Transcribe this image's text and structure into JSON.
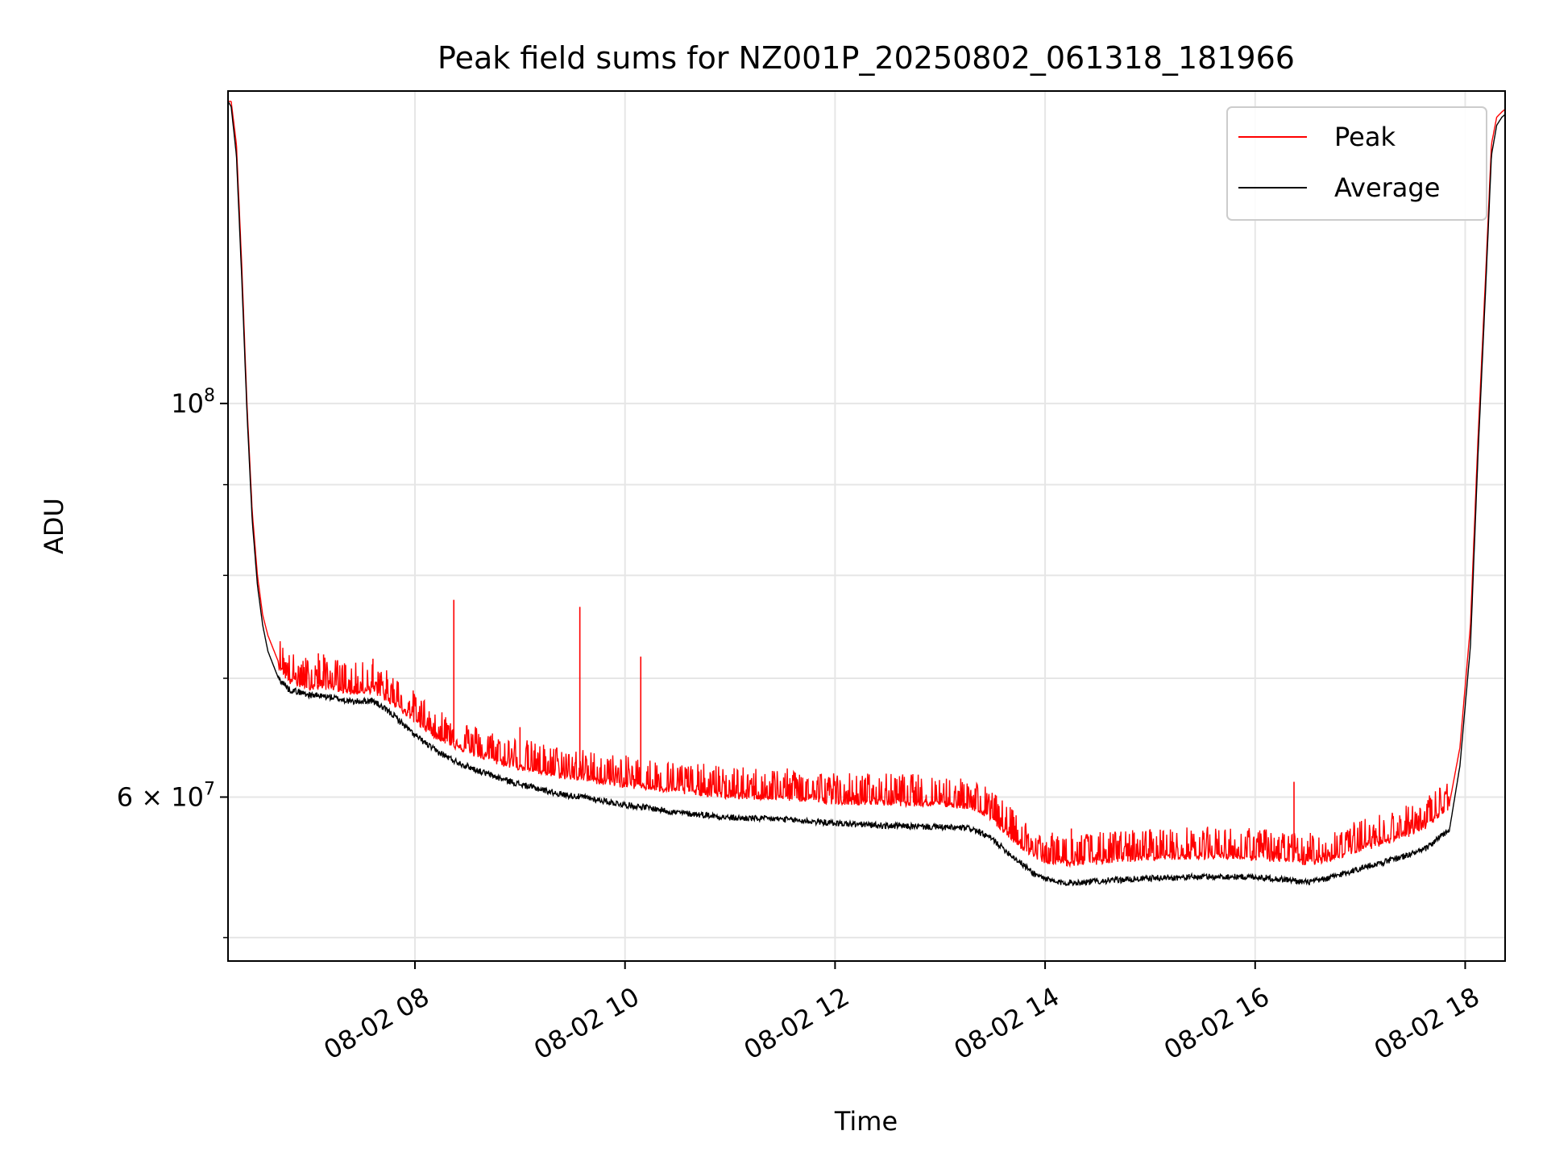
{
  "chart_data": {
    "type": "line",
    "title": "Peak field sums for NZ001P_20250802_061318_181966",
    "xlabel": "Time",
    "ylabel": "ADU",
    "x_unit": "time of day (hours) on 08-02",
    "yscale": "log",
    "xlim": [
      6.22,
      18.38
    ],
    "ylim": [
      48500000,
      150000000
    ],
    "grid": true,
    "legend_position": "top-right",
    "xticks": [
      {
        "value": 8,
        "label": "08-02 08"
      },
      {
        "value": 10,
        "label": "08-02 10"
      },
      {
        "value": 12,
        "label": "08-02 12"
      },
      {
        "value": 14,
        "label": "08-02 14"
      },
      {
        "value": 16,
        "label": "08-02 16"
      },
      {
        "value": 18,
        "label": "08-02 18"
      }
    ],
    "yticks": [
      {
        "value": 100000000,
        "label": "10^8",
        "mantissa": "",
        "power": "8"
      },
      {
        "value": 60000000,
        "label": "6×10^7",
        "mantissa": "6 × ",
        "power": "7"
      }
    ],
    "yminor": [
      50000000,
      70000000,
      80000000,
      90000000
    ],
    "series": [
      {
        "name": "Peak",
        "color": "#ff0000",
        "x": [
          6.22,
          6.25,
          6.3,
          6.35,
          6.4,
          6.45,
          6.5,
          6.55,
          6.6,
          6.7,
          6.8,
          7.0,
          7.2,
          7.4,
          7.6,
          7.8,
          8.0,
          8.2,
          8.4,
          8.6,
          8.8,
          9.0,
          9.2,
          9.4,
          9.6,
          9.8,
          10.0,
          10.2,
          10.5,
          10.8,
          11.0,
          11.5,
          12.0,
          12.5,
          13.0,
          13.3,
          13.5,
          13.7,
          13.9,
          14.1,
          14.3,
          14.5,
          15.0,
          15.5,
          16.0,
          16.3,
          16.5,
          16.7,
          17.0,
          17.3,
          17.6,
          17.85,
          17.95,
          18.05,
          18.12,
          18.2,
          18.25,
          18.3,
          18.35,
          18.38
        ],
        "values": [
          148000000,
          148000000,
          140000000,
          120000000,
          100000000,
          87000000,
          80000000,
          76000000,
          74000000,
          71500000,
          70000000,
          69500000,
          69500000,
          69000000,
          69200000,
          68000000,
          66500000,
          65200000,
          64300000,
          63600000,
          63000000,
          62600000,
          62200000,
          61900000,
          61700000,
          61400000,
          61200000,
          61000000,
          60700000,
          60500000,
          60300000,
          60200000,
          59900000,
          59800000,
          59700000,
          59500000,
          58500000,
          57000000,
          55700000,
          55300000,
          55300000,
          55400000,
          55700000,
          55800000,
          55700000,
          55500000,
          55300000,
          55600000,
          56300000,
          57000000,
          57800000,
          59500000,
          64000000,
          75000000,
          95000000,
          120000000,
          140000000,
          145000000,
          146000000,
          146500000
        ],
        "spikes": [
          {
            "x": 8.37,
            "value": 77500000
          },
          {
            "x": 9.57,
            "value": 76800000
          },
          {
            "x": 10.15,
            "value": 72000000
          },
          {
            "x": 7.08,
            "value": 72300000
          },
          {
            "x": 7.13,
            "value": 72200000
          },
          {
            "x": 7.6,
            "value": 71800000
          },
          {
            "x": 9.0,
            "value": 65700000
          },
          {
            "x": 14.25,
            "value": 57600000
          },
          {
            "x": 16.37,
            "value": 61200000
          }
        ]
      },
      {
        "name": "Average",
        "color": "#000000",
        "x": [
          6.22,
          6.25,
          6.3,
          6.35,
          6.4,
          6.45,
          6.5,
          6.55,
          6.6,
          6.7,
          6.8,
          7.0,
          7.2,
          7.4,
          7.6,
          7.8,
          8.0,
          8.2,
          8.4,
          8.6,
          8.8,
          9.0,
          9.2,
          9.4,
          9.6,
          9.8,
          10.0,
          10.2,
          10.5,
          10.8,
          11.0,
          11.5,
          12.0,
          12.5,
          13.0,
          13.3,
          13.5,
          13.7,
          13.9,
          14.1,
          14.3,
          14.5,
          15.0,
          15.5,
          16.0,
          16.3,
          16.5,
          16.7,
          17.0,
          17.3,
          17.6,
          17.85,
          17.95,
          18.05,
          18.12,
          18.2,
          18.25,
          18.3,
          18.35,
          18.38
        ],
        "values": [
          148000000,
          147000000,
          138000000,
          118000000,
          99000000,
          86000000,
          79000000,
          75000000,
          72500000,
          70000000,
          69000000,
          68500000,
          68300000,
          67900000,
          68000000,
          66700000,
          65000000,
          63700000,
          62800000,
          62100000,
          61500000,
          61000000,
          60600000,
          60200000,
          60000000,
          59700000,
          59400000,
          59200000,
          58800000,
          58600000,
          58400000,
          58300000,
          58000000,
          57800000,
          57700000,
          57600000,
          56800000,
          55500000,
          54300000,
          53700000,
          53700000,
          53800000,
          54000000,
          54100000,
          54100000,
          53900000,
          53700000,
          54000000,
          54700000,
          55300000,
          56000000,
          57500000,
          62500000,
          73000000,
          93000000,
          118000000,
          138000000,
          143500000,
          145000000,
          145500000
        ]
      }
    ]
  }
}
